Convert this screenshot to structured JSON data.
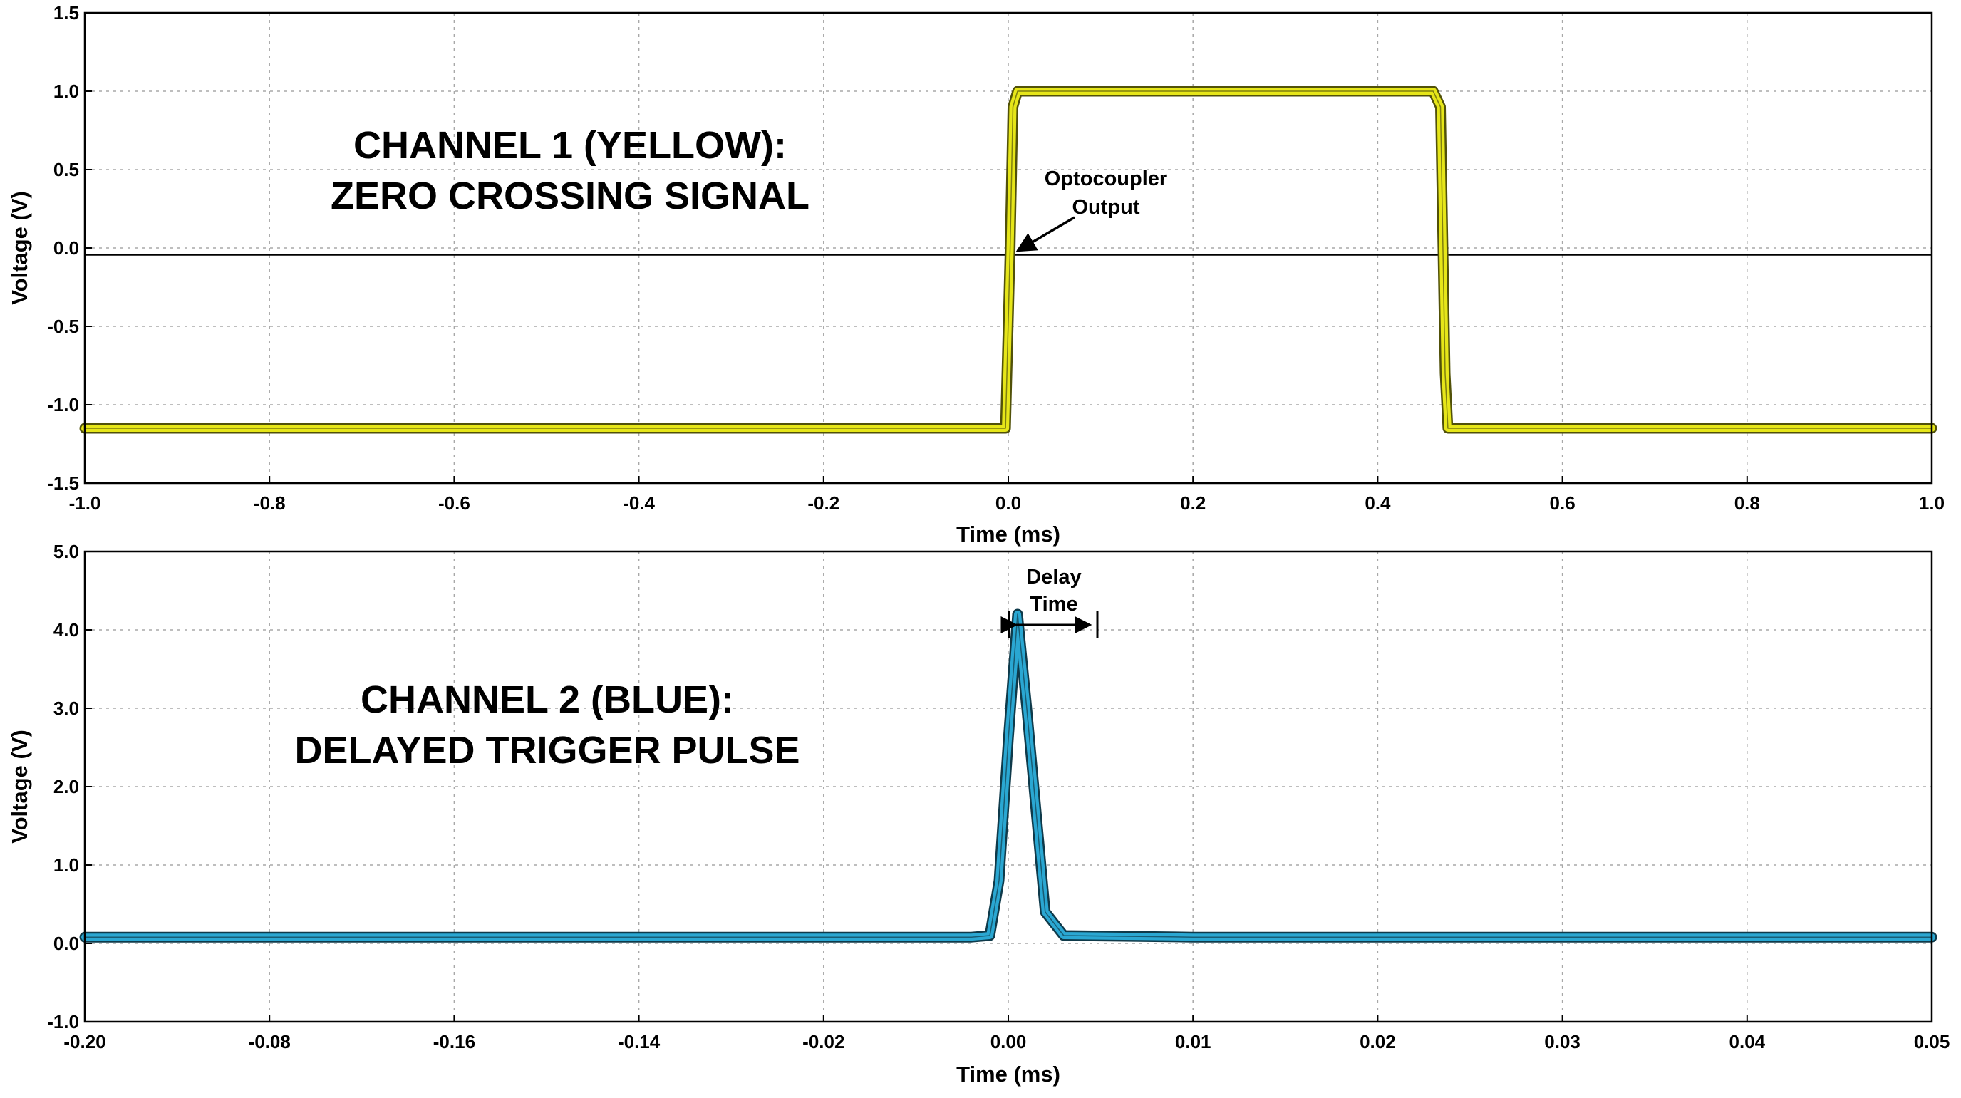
{
  "chart_data": [
    {
      "type": "line",
      "label_line1": "CHANNEL 1 (YELLOW):",
      "label_line2": "ZERO CROSSING SIGNAL",
      "xlabel": "Time (ms)",
      "ylabel": "Voltage (V)",
      "xlim": [
        -1.0,
        1.0
      ],
      "ylim": [
        -1.5,
        1.5
      ],
      "x_ticks": [
        "-1.0",
        "-0.8",
        "-0.6",
        "-0.4",
        "-0.2",
        "0.0",
        "0.2",
        "0.4",
        "0.6",
        "0.8",
        "1.0"
      ],
      "y_ticks": [
        "1.5",
        "1.0",
        "0.5",
        "0.0",
        "-0.5",
        "-1.0",
        "-1.5"
      ],
      "grid": true,
      "color": "#e6e619",
      "series": [
        {
          "x": [
            -1.0,
            -0.003,
            0.002,
            0.005,
            0.01,
            0.46,
            0.468,
            0.473,
            0.476,
            1.0
          ],
          "y": [
            -1.15,
            -1.15,
            0.0,
            0.9,
            1.0,
            1.0,
            0.9,
            -0.8,
            -1.15,
            -1.15
          ]
        }
      ],
      "annotation": {
        "line1": "Optocoupler",
        "line2": "Output",
        "target": [
          0.0,
          0.0
        ]
      }
    },
    {
      "type": "line",
      "label_line1": "CHANNEL 2 (BLUE):",
      "label_line2": "DELAYED TRIGGER PULSE",
      "xlabel": "Time (ms)",
      "ylabel": "Voltage (V)",
      "x_ticks": [
        "-0.20",
        "-0.08",
        "-0.16",
        "-0.14",
        "-0.02",
        "0.00",
        "0.01",
        "0.02",
        "0.03",
        "0.04",
        "0.05"
      ],
      "y_ticks": [
        "5.0",
        "4.0",
        "3.0",
        "2.0",
        "1.0",
        "0.0",
        "-1.0"
      ],
      "ylim": [
        -1.0,
        5.0
      ],
      "grid": true,
      "color": "#2aa7d2",
      "series": [
        {
          "tick_pos": [
            0,
            0.05,
            0.48,
            0.49,
            0.495,
            0.5,
            0.505,
            0.51,
            0.52,
            0.53,
            0.6,
            1.0
          ],
          "y": [
            0.08,
            0.08,
            0.08,
            0.1,
            0.8,
            2.6,
            4.2,
            3.0,
            0.4,
            0.1,
            0.08,
            0.08
          ]
        }
      ],
      "annotation": {
        "line1": "Delay",
        "line2": "Time"
      }
    }
  ]
}
